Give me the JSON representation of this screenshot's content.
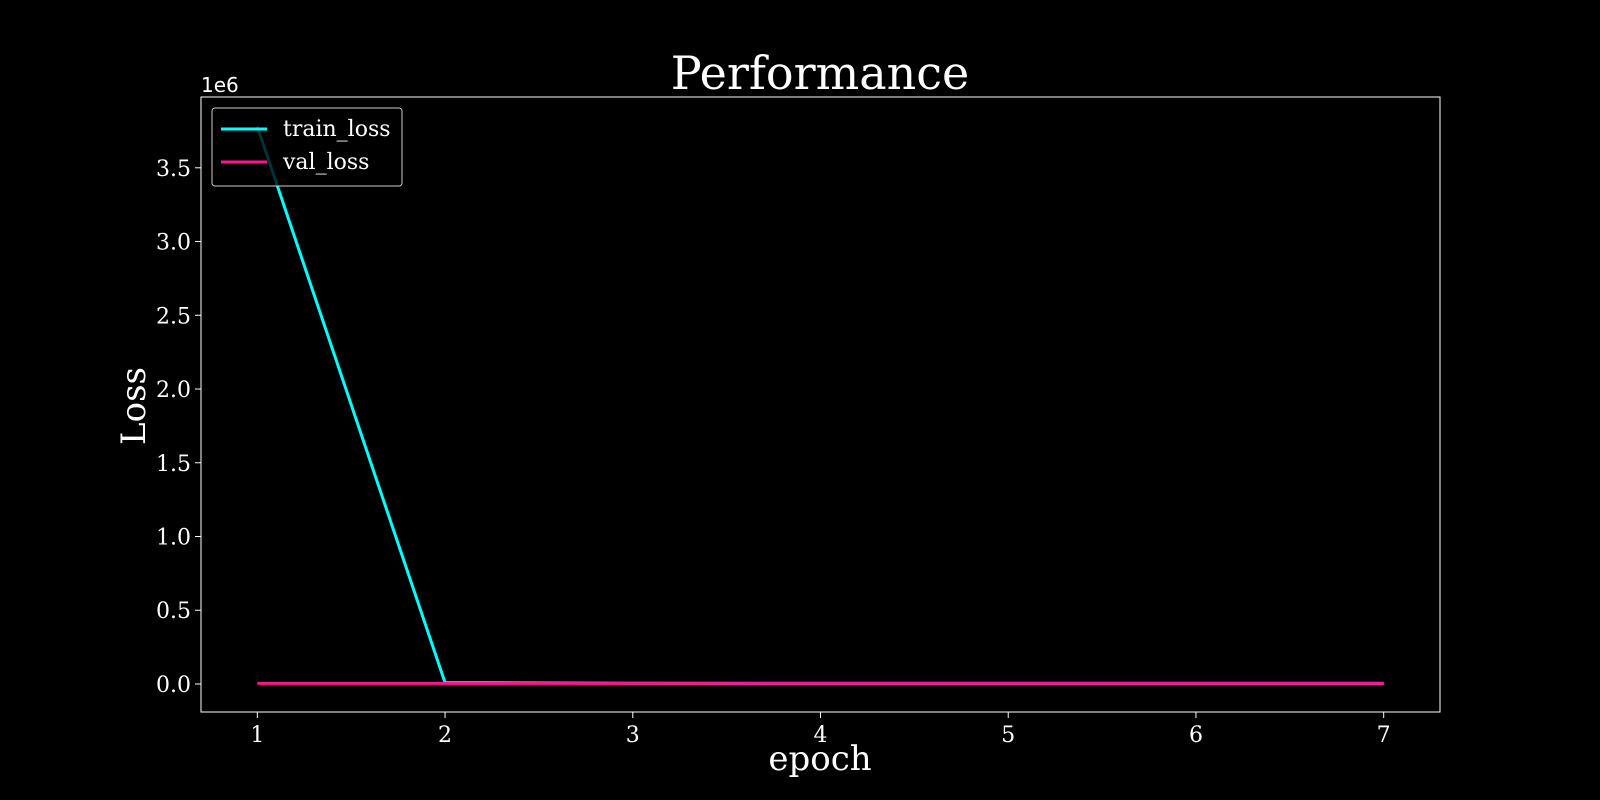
{
  "chart_data": {
    "type": "line",
    "title": "Performance",
    "xlabel": "epoch",
    "ylabel": "Loss",
    "y_offset_label": "1e6",
    "x": [
      1,
      2,
      3,
      4,
      5,
      6,
      7
    ],
    "xlim": [
      0.7,
      7.3
    ],
    "ylim": [
      -0.19,
      3.98
    ],
    "x_ticks": [
      1,
      2,
      3,
      4,
      5,
      6,
      7
    ],
    "x_tick_labels": [
      "1",
      "2",
      "3",
      "4",
      "5",
      "6",
      "7"
    ],
    "y_ticks": [
      0,
      0.5,
      1,
      1.5,
      2,
      2.5,
      3,
      3.5
    ],
    "y_tick_labels": [
      "0.0",
      "0.5",
      "1.0",
      "1.5",
      "2.0",
      "2.5",
      "3.0",
      "3.5"
    ],
    "grid": false,
    "legend_position": "top-left",
    "series": [
      {
        "name": "train_loss",
        "color": "#00ffff",
        "values": [
          3.78,
          0.01,
          0.005,
          0.004,
          0.004,
          0.004,
          0.004
        ]
      },
      {
        "name": "val_loss",
        "color": "#ff1493",
        "values": [
          0.004,
          0.004,
          0.004,
          0.004,
          0.004,
          0.004,
          0.004
        ]
      }
    ]
  }
}
